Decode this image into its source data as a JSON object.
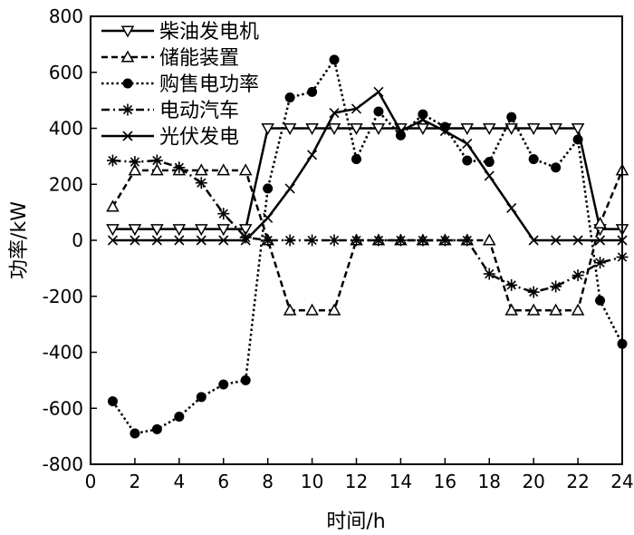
{
  "chart_data": {
    "type": "line",
    "xlabel": "时间/h",
    "ylabel": "功率/kW",
    "xlim": [
      0,
      24
    ],
    "ylim": [
      -800,
      800
    ],
    "xticks": [
      0,
      2,
      4,
      6,
      8,
      10,
      12,
      14,
      16,
      18,
      20,
      22,
      24
    ],
    "yticks": [
      -800,
      -600,
      -400,
      -200,
      0,
      200,
      400,
      600,
      800
    ],
    "legend_position": "top-left",
    "grid": false,
    "x": [
      1,
      2,
      3,
      4,
      5,
      6,
      7,
      8,
      9,
      10,
      11,
      12,
      13,
      14,
      15,
      16,
      17,
      18,
      19,
      20,
      21,
      22,
      23,
      24
    ],
    "series": [
      {
        "name": "柴油发电机",
        "line": "solid",
        "marker": "triangle-down",
        "values": [
          40,
          40,
          40,
          40,
          40,
          40,
          40,
          400,
          400,
          400,
          400,
          400,
          400,
          400,
          400,
          400,
          400,
          400,
          400,
          400,
          400,
          400,
          40,
          40
        ]
      },
      {
        "name": "储能装置",
        "line": "dashed",
        "marker": "triangle-up",
        "values": [
          120,
          250,
          250,
          250,
          250,
          250,
          250,
          0,
          -250,
          -250,
          -250,
          0,
          0,
          0,
          0,
          0,
          0,
          0,
          -250,
          -250,
          -250,
          -250,
          60,
          250
        ]
      },
      {
        "name": "购售电功率",
        "line": "dotted",
        "marker": "circle",
        "values": [
          -575,
          -690,
          -675,
          -630,
          -560,
          -515,
          -500,
          185,
          510,
          530,
          645,
          290,
          460,
          375,
          450,
          405,
          285,
          280,
          440,
          290,
          260,
          360,
          -215,
          -370
        ]
      },
      {
        "name": "电动汽车",
        "line": "dash-dot",
        "marker": "asterisk",
        "values": [
          285,
          280,
          285,
          260,
          205,
          95,
          10,
          0,
          0,
          0,
          0,
          0,
          0,
          0,
          0,
          0,
          0,
          -120,
          -160,
          -185,
          -165,
          -125,
          -80,
          -60
        ]
      },
      {
        "name": "光伏发电",
        "line": "solid",
        "marker": "x",
        "values": [
          0,
          0,
          0,
          0,
          0,
          0,
          0,
          80,
          185,
          305,
          455,
          470,
          530,
          390,
          430,
          390,
          345,
          230,
          115,
          0,
          0,
          0,
          0,
          0
        ]
      }
    ]
  }
}
